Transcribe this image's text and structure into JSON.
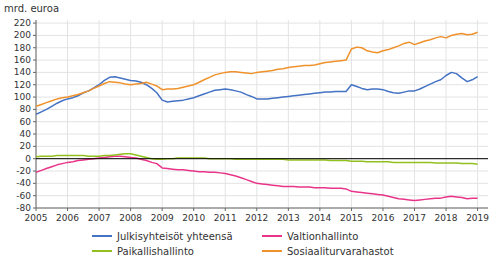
{
  "chart_data": {
    "type": "line",
    "y_label": "mrd. euroa",
    "x": [
      2005.0,
      2005.17,
      2005.33,
      2005.5,
      2005.67,
      2005.83,
      2006.0,
      2006.17,
      2006.33,
      2006.5,
      2006.67,
      2006.83,
      2007.0,
      2007.17,
      2007.33,
      2007.5,
      2007.67,
      2007.83,
      2008.0,
      2008.17,
      2008.33,
      2008.5,
      2008.67,
      2008.83,
      2009.0,
      2009.17,
      2009.33,
      2009.5,
      2009.67,
      2009.83,
      2010.0,
      2010.17,
      2010.33,
      2010.5,
      2010.67,
      2010.83,
      2011.0,
      2011.17,
      2011.33,
      2011.5,
      2011.67,
      2011.83,
      2012.0,
      2012.17,
      2012.33,
      2012.5,
      2012.67,
      2012.83,
      2013.0,
      2013.17,
      2013.33,
      2013.5,
      2013.67,
      2013.83,
      2014.0,
      2014.17,
      2014.33,
      2014.5,
      2014.67,
      2014.83,
      2015.0,
      2015.17,
      2015.33,
      2015.5,
      2015.67,
      2015.83,
      2016.0,
      2016.17,
      2016.33,
      2016.5,
      2016.67,
      2016.83,
      2017.0,
      2017.17,
      2017.33,
      2017.5,
      2017.67,
      2017.83,
      2018.0,
      2018.17,
      2018.33,
      2018.5,
      2018.67,
      2018.83,
      2019.0
    ],
    "series": [
      {
        "name": "Julkisyhteisöt yhteensä",
        "color": "#4472c4",
        "values": [
          72,
          76,
          80,
          85,
          90,
          94,
          97,
          99,
          102,
          107,
          110,
          115,
          120,
          127,
          132,
          133,
          131,
          129,
          127,
          126,
          124,
          120,
          114,
          107,
          95,
          92,
          93,
          94,
          95,
          97,
          99,
          102,
          105,
          108,
          111,
          112,
          113,
          112,
          110,
          108,
          104,
          101,
          97,
          97,
          97,
          98,
          99,
          100,
          101,
          102,
          103,
          104,
          105,
          106,
          107,
          108,
          108,
          109,
          109,
          109,
          120,
          117,
          114,
          112,
          113,
          113,
          112,
          109,
          107,
          106,
          108,
          110,
          110,
          113,
          117,
          121,
          125,
          128,
          135,
          140,
          138,
          131,
          125,
          128,
          133
        ]
      },
      {
        "name": "Valtionhallinto",
        "color": "#e8358a",
        "values": [
          -22,
          -19,
          -16,
          -13,
          -10,
          -8,
          -6,
          -5,
          -3,
          -2,
          -1,
          0,
          1,
          2,
          3,
          4,
          4,
          3,
          2,
          1,
          -1,
          -3,
          -6,
          -8,
          -15,
          -16,
          -17,
          -18,
          -18,
          -19,
          -20,
          -21,
          -21,
          -22,
          -22,
          -23,
          -24,
          -26,
          -28,
          -31,
          -34,
          -37,
          -40,
          -41,
          -42,
          -43,
          -44,
          -45,
          -45,
          -45,
          -46,
          -46,
          -46,
          -47,
          -47,
          -47,
          -48,
          -48,
          -48,
          -49,
          -53,
          -54,
          -55,
          -56,
          -57,
          -58,
          -59,
          -61,
          -63,
          -65,
          -66,
          -67,
          -68,
          -67,
          -66,
          -65,
          -64,
          -64,
          -62,
          -61,
          -62,
          -63,
          -65,
          -64,
          -64
        ]
      },
      {
        "name": "Paikallishallinto",
        "color": "#92c01f",
        "values": [
          3,
          4,
          4,
          4,
          5,
          5,
          5,
          5,
          5,
          5,
          4,
          4,
          4,
          5,
          5,
          6,
          7,
          8,
          8,
          6,
          4,
          2,
          0,
          -1,
          -1,
          0,
          0,
          1,
          1,
          1,
          1,
          1,
          1,
          0,
          0,
          0,
          0,
          0,
          -1,
          -1,
          -1,
          -1,
          -1,
          -1,
          -1,
          -1,
          -1,
          -1,
          -2,
          -2,
          -2,
          -2,
          -2,
          -2,
          -2,
          -2,
          -3,
          -3,
          -3,
          -3,
          -4,
          -4,
          -4,
          -5,
          -5,
          -5,
          -5,
          -5,
          -6,
          -6,
          -6,
          -6,
          -6,
          -6,
          -6,
          -6,
          -7,
          -7,
          -7,
          -7,
          -7,
          -8,
          -8,
          -8,
          -9
        ]
      },
      {
        "name": "Sosiaaliturvarahastot",
        "color": "#f0922c",
        "values": [
          85,
          88,
          91,
          94,
          97,
          99,
          100,
          102,
          104,
          107,
          110,
          114,
          118,
          122,
          125,
          124,
          123,
          121,
          120,
          121,
          122,
          124,
          121,
          118,
          112,
          113,
          113,
          114,
          116,
          118,
          120,
          124,
          128,
          132,
          136,
          138,
          140,
          141,
          141,
          140,
          139,
          138,
          140,
          141,
          142,
          143,
          145,
          146,
          148,
          149,
          150,
          151,
          151,
          152,
          154,
          156,
          157,
          158,
          159,
          160,
          178,
          181,
          180,
          175,
          173,
          172,
          175,
          177,
          180,
          183,
          187,
          189,
          185,
          188,
          191,
          193,
          196,
          198,
          196,
          200,
          202,
          203,
          201,
          202,
          205
        ]
      }
    ],
    "xlim": [
      2005.0,
      2019.33
    ],
    "xticks": [
      2005,
      2006,
      2007,
      2008,
      2009,
      2010,
      2011,
      2012,
      2013,
      2014,
      2015,
      2016,
      2017,
      2018,
      2019
    ],
    "ylim": [
      -80,
      225
    ],
    "yticks": [
      -80,
      -60,
      -40,
      -20,
      0,
      20,
      40,
      60,
      80,
      100,
      120,
      140,
      160,
      180,
      200,
      220
    ],
    "grid": true,
    "legend": "bottom"
  }
}
